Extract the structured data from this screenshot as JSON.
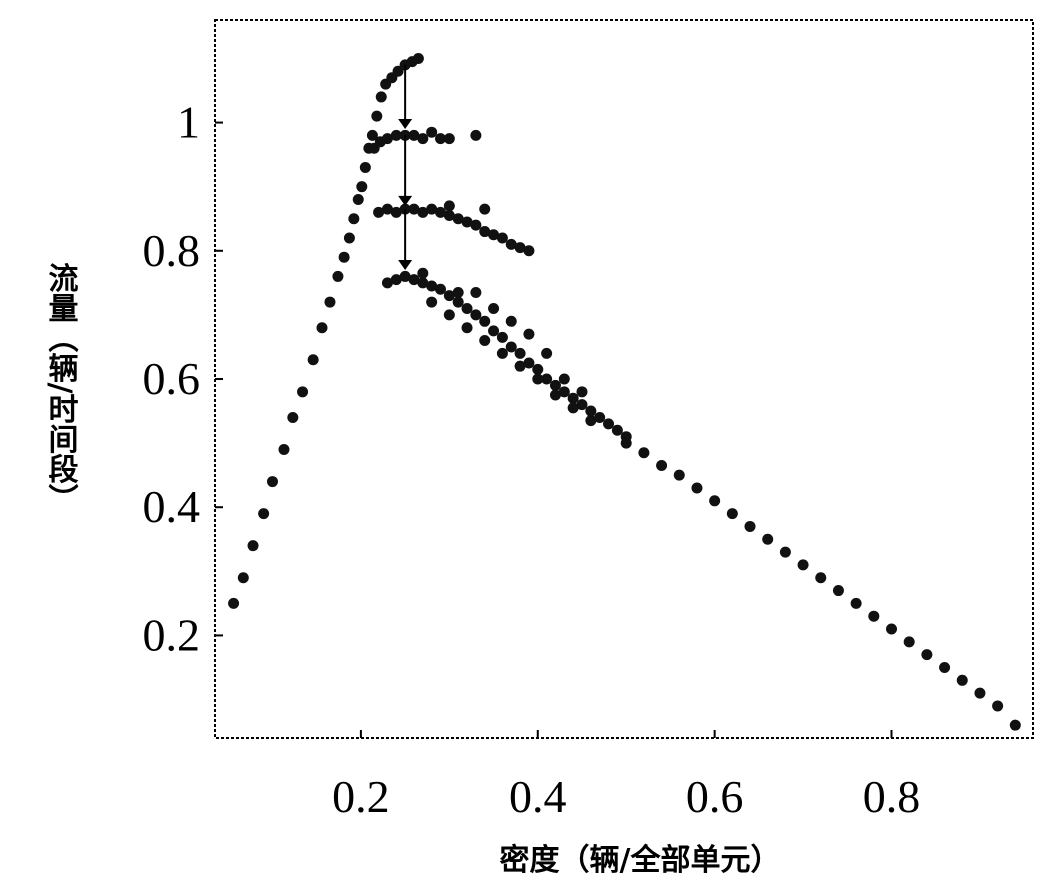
{
  "chart_data": {
    "type": "scatter",
    "title": "",
    "xlabel": "密度（辆/全部单元）",
    "ylabel": "流量（辆/时间段）",
    "xlim": [
      0.035,
      0.96
    ],
    "ylim": [
      0.04,
      1.16
    ],
    "x_ticks": [
      "0.2",
      "0.4",
      "0.6",
      "0.8"
    ],
    "x_tick_values": [
      0.2,
      0.4,
      0.6,
      0.8
    ],
    "y_ticks": [
      "0.2",
      "0.4",
      "0.6",
      "0.8",
      "1"
    ],
    "y_tick_values": [
      0.2,
      0.4,
      0.6,
      0.8,
      1.0
    ],
    "grid": false,
    "frame_style": "dashed",
    "marker_color": "#111111",
    "series": [
      {
        "values": [
          {
            "x": 0.056,
            "y": 0.25
          },
          {
            "x": 0.067,
            "y": 0.29
          },
          {
            "x": 0.078,
            "y": 0.34
          },
          {
            "x": 0.09,
            "y": 0.39
          },
          {
            "x": 0.1,
            "y": 0.44
          },
          {
            "x": 0.113,
            "y": 0.49
          },
          {
            "x": 0.123,
            "y": 0.54
          },
          {
            "x": 0.134,
            "y": 0.58
          },
          {
            "x": 0.146,
            "y": 0.63
          },
          {
            "x": 0.156,
            "y": 0.68
          },
          {
            "x": 0.165,
            "y": 0.72
          },
          {
            "x": 0.174,
            "y": 0.76
          },
          {
            "x": 0.181,
            "y": 0.79
          },
          {
            "x": 0.187,
            "y": 0.82
          },
          {
            "x": 0.192,
            "y": 0.85
          },
          {
            "x": 0.197,
            "y": 0.88
          },
          {
            "x": 0.201,
            "y": 0.9
          },
          {
            "x": 0.205,
            "y": 0.93
          },
          {
            "x": 0.209,
            "y": 0.96
          },
          {
            "x": 0.213,
            "y": 0.98
          },
          {
            "x": 0.218,
            "y": 1.01
          },
          {
            "x": 0.223,
            "y": 1.04
          },
          {
            "x": 0.228,
            "y": 1.06
          },
          {
            "x": 0.235,
            "y": 1.07
          },
          {
            "x": 0.242,
            "y": 1.08
          },
          {
            "x": 0.25,
            "y": 1.09
          },
          {
            "x": 0.258,
            "y": 1.095
          },
          {
            "x": 0.265,
            "y": 1.1
          }
        ]
      },
      {
        "values": [
          {
            "x": 0.215,
            "y": 0.96
          },
          {
            "x": 0.222,
            "y": 0.97
          },
          {
            "x": 0.23,
            "y": 0.975
          },
          {
            "x": 0.24,
            "y": 0.98
          },
          {
            "x": 0.25,
            "y": 0.98
          },
          {
            "x": 0.26,
            "y": 0.98
          },
          {
            "x": 0.27,
            "y": 0.975
          },
          {
            "x": 0.28,
            "y": 0.985
          },
          {
            "x": 0.29,
            "y": 0.975
          },
          {
            "x": 0.3,
            "y": 0.975
          },
          {
            "x": 0.33,
            "y": 0.98
          }
        ]
      },
      {
        "values": [
          {
            "x": 0.22,
            "y": 0.86
          },
          {
            "x": 0.23,
            "y": 0.865
          },
          {
            "x": 0.24,
            "y": 0.86
          },
          {
            "x": 0.25,
            "y": 0.865
          },
          {
            "x": 0.26,
            "y": 0.865
          },
          {
            "x": 0.27,
            "y": 0.86
          },
          {
            "x": 0.28,
            "y": 0.865
          },
          {
            "x": 0.29,
            "y": 0.86
          },
          {
            "x": 0.3,
            "y": 0.855
          },
          {
            "x": 0.31,
            "y": 0.85
          },
          {
            "x": 0.32,
            "y": 0.845
          },
          {
            "x": 0.33,
            "y": 0.84
          },
          {
            "x": 0.34,
            "y": 0.83
          },
          {
            "x": 0.35,
            "y": 0.825
          },
          {
            "x": 0.36,
            "y": 0.82
          },
          {
            "x": 0.37,
            "y": 0.81
          },
          {
            "x": 0.38,
            "y": 0.805
          },
          {
            "x": 0.39,
            "y": 0.8
          },
          {
            "x": 0.34,
            "y": 0.865
          },
          {
            "x": 0.3,
            "y": 0.87
          }
        ]
      },
      {
        "values": [
          {
            "x": 0.23,
            "y": 0.75
          },
          {
            "x": 0.24,
            "y": 0.755
          },
          {
            "x": 0.25,
            "y": 0.76
          },
          {
            "x": 0.26,
            "y": 0.755
          },
          {
            "x": 0.27,
            "y": 0.75
          },
          {
            "x": 0.28,
            "y": 0.745
          },
          {
            "x": 0.29,
            "y": 0.74
          },
          {
            "x": 0.3,
            "y": 0.73
          },
          {
            "x": 0.31,
            "y": 0.72
          },
          {
            "x": 0.32,
            "y": 0.71
          },
          {
            "x": 0.33,
            "y": 0.7
          },
          {
            "x": 0.34,
            "y": 0.69
          },
          {
            "x": 0.35,
            "y": 0.675
          },
          {
            "x": 0.36,
            "y": 0.665
          },
          {
            "x": 0.37,
            "y": 0.65
          },
          {
            "x": 0.38,
            "y": 0.64
          },
          {
            "x": 0.39,
            "y": 0.625
          },
          {
            "x": 0.4,
            "y": 0.615
          },
          {
            "x": 0.41,
            "y": 0.6
          },
          {
            "x": 0.42,
            "y": 0.59
          },
          {
            "x": 0.43,
            "y": 0.58
          },
          {
            "x": 0.44,
            "y": 0.57
          },
          {
            "x": 0.45,
            "y": 0.56
          },
          {
            "x": 0.46,
            "y": 0.55
          },
          {
            "x": 0.47,
            "y": 0.54
          },
          {
            "x": 0.48,
            "y": 0.53
          },
          {
            "x": 0.49,
            "y": 0.52
          },
          {
            "x": 0.5,
            "y": 0.51
          },
          {
            "x": 0.28,
            "y": 0.72
          },
          {
            "x": 0.3,
            "y": 0.7
          },
          {
            "x": 0.32,
            "y": 0.68
          },
          {
            "x": 0.34,
            "y": 0.66
          },
          {
            "x": 0.36,
            "y": 0.64
          },
          {
            "x": 0.38,
            "y": 0.62
          },
          {
            "x": 0.33,
            "y": 0.735
          },
          {
            "x": 0.35,
            "y": 0.71
          },
          {
            "x": 0.37,
            "y": 0.69
          },
          {
            "x": 0.39,
            "y": 0.67
          },
          {
            "x": 0.41,
            "y": 0.64
          },
          {
            "x": 0.43,
            "y": 0.6
          },
          {
            "x": 0.4,
            "y": 0.6
          },
          {
            "x": 0.42,
            "y": 0.575
          },
          {
            "x": 0.44,
            "y": 0.555
          },
          {
            "x": 0.46,
            "y": 0.535
          },
          {
            "x": 0.45,
            "y": 0.58
          },
          {
            "x": 0.31,
            "y": 0.735
          },
          {
            "x": 0.27,
            "y": 0.765
          }
        ]
      },
      {
        "values": [
          {
            "x": 0.5,
            "y": 0.5
          },
          {
            "x": 0.52,
            "y": 0.485
          },
          {
            "x": 0.54,
            "y": 0.465
          },
          {
            "x": 0.56,
            "y": 0.45
          },
          {
            "x": 0.58,
            "y": 0.43
          },
          {
            "x": 0.6,
            "y": 0.41
          },
          {
            "x": 0.62,
            "y": 0.39
          },
          {
            "x": 0.64,
            "y": 0.37
          },
          {
            "x": 0.66,
            "y": 0.35
          },
          {
            "x": 0.68,
            "y": 0.33
          },
          {
            "x": 0.7,
            "y": 0.31
          },
          {
            "x": 0.72,
            "y": 0.29
          },
          {
            "x": 0.74,
            "y": 0.27
          },
          {
            "x": 0.76,
            "y": 0.25
          },
          {
            "x": 0.78,
            "y": 0.23
          },
          {
            "x": 0.8,
            "y": 0.21
          },
          {
            "x": 0.82,
            "y": 0.19
          },
          {
            "x": 0.84,
            "y": 0.17
          },
          {
            "x": 0.86,
            "y": 0.15
          },
          {
            "x": 0.88,
            "y": 0.13
          },
          {
            "x": 0.9,
            "y": 0.11
          },
          {
            "x": 0.92,
            "y": 0.09
          },
          {
            "x": 0.94,
            "y": 0.06
          }
        ]
      }
    ],
    "annotations": [
      {
        "type": "arrow",
        "from": {
          "x": 0.25,
          "y": 1.09
        },
        "to": {
          "x": 0.25,
          "y": 0.99
        }
      },
      {
        "type": "arrow",
        "from": {
          "x": 0.25,
          "y": 0.98
        },
        "to": {
          "x": 0.25,
          "y": 0.87
        }
      },
      {
        "type": "arrow",
        "from": {
          "x": 0.25,
          "y": 0.865
        },
        "to": {
          "x": 0.25,
          "y": 0.77
        }
      }
    ]
  }
}
